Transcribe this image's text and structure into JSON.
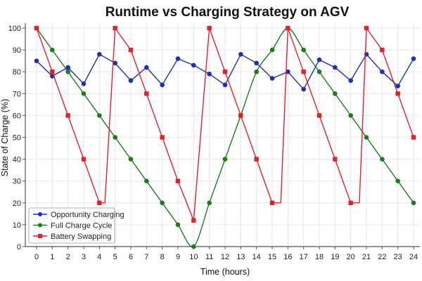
{
  "chart_data": {
    "type": "line",
    "title": "Runtime vs Charging Strategy on AGV",
    "xlabel": "Time (hours)",
    "ylabel": "State of Charge (%)",
    "xlim": [
      0,
      24
    ],
    "ylim": [
      0,
      100
    ],
    "xticks": [
      0,
      1,
      2,
      3,
      4,
      5,
      6,
      7,
      8,
      9,
      10,
      11,
      12,
      13,
      14,
      15,
      16,
      17,
      18,
      19,
      20,
      21,
      22,
      23,
      24
    ],
    "yticks": [
      0,
      10,
      20,
      30,
      40,
      50,
      60,
      70,
      80,
      90,
      100
    ],
    "grid": true,
    "legend_position": "lower left",
    "series": [
      {
        "name": "Opportunity Charging",
        "color": "#1f2fb0",
        "marker": "circle",
        "x": [
          0,
          1,
          2,
          3,
          4,
          5,
          6,
          7,
          8,
          9,
          10,
          11,
          12,
          13,
          14,
          15,
          16,
          17,
          18,
          19,
          20,
          21,
          22,
          23,
          24
        ],
        "y": [
          85,
          78,
          82,
          74.5,
          88,
          84,
          76,
          82,
          74,
          86,
          83,
          79,
          74,
          88,
          84,
          77,
          80,
          72,
          85.5,
          82,
          76,
          88,
          80,
          73.5,
          86
        ],
        "marker_x": [
          0,
          1,
          2,
          3,
          4,
          5,
          6,
          7,
          8,
          9,
          10,
          11,
          12,
          13,
          14,
          15,
          16,
          17,
          18,
          19,
          20,
          21,
          22,
          23,
          24
        ]
      },
      {
        "name": "Full Charge Cycle",
        "color": "#1e7a1e",
        "marker": "circle",
        "x": [
          0,
          1,
          2,
          3,
          4,
          5,
          6,
          7,
          8,
          9,
          10,
          11,
          12,
          13,
          14,
          15,
          16,
          17,
          18,
          19,
          20,
          21,
          22,
          23,
          24
        ],
        "y": [
          100,
          90,
          80,
          70,
          60,
          50,
          40,
          30,
          20,
          10,
          0,
          20,
          40,
          60,
          80,
          90,
          100,
          90,
          80,
          70,
          60,
          50,
          40,
          30,
          20
        ],
        "curve": "smooth"
      },
      {
        "name": "Battery Swapping",
        "color": "#e0232b",
        "marker": "square",
        "x": [
          0,
          1,
          2,
          3,
          4,
          4.35,
          5,
          6,
          7,
          8,
          9,
          10,
          11,
          12,
          13,
          14,
          15,
          15.55,
          16,
          17,
          18,
          19,
          20,
          20.55,
          21,
          22,
          23,
          24
        ],
        "y": [
          100,
          80,
          60,
          40,
          20,
          20,
          100,
          90,
          70,
          50,
          30,
          12,
          100,
          80,
          60,
          40,
          20,
          20,
          100,
          80,
          60,
          40,
          20,
          20,
          100,
          90,
          70,
          50
        ],
        "marker_x": [
          0,
          1,
          2,
          3,
          4,
          5,
          6,
          7,
          8,
          9,
          10,
          11,
          12,
          13,
          14,
          15,
          16,
          17,
          18,
          19,
          20,
          21,
          22,
          23,
          24
        ]
      }
    ]
  }
}
